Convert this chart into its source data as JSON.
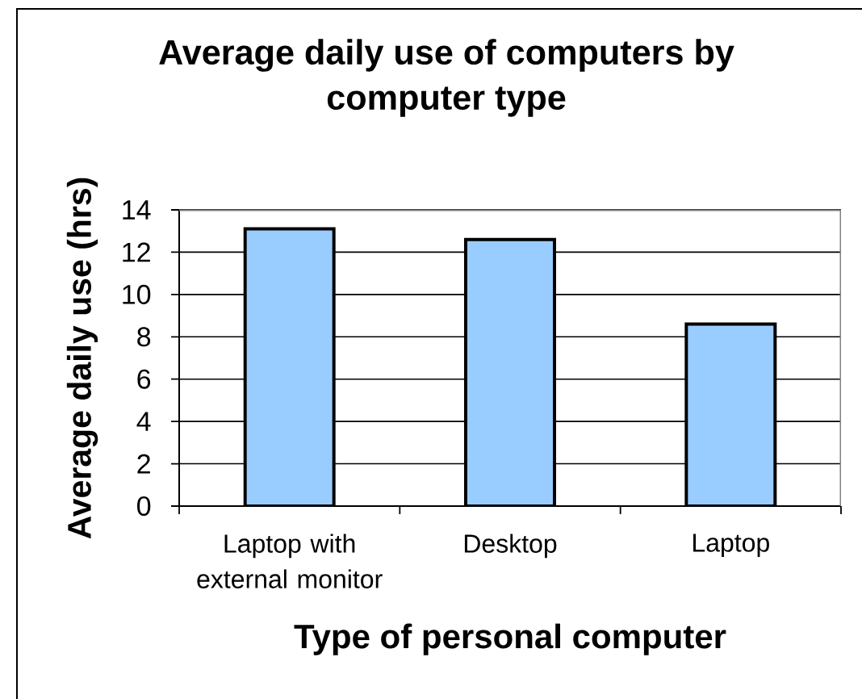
{
  "chart_data": {
    "type": "bar",
    "title": "Average daily use of computers by computer type",
    "xlabel": "Type of personal computer",
    "ylabel": "Average daily use (hrs)",
    "categories": [
      "Laptop with external monitor",
      "Desktop",
      "Laptop"
    ],
    "values": [
      13.1,
      12.6,
      8.6
    ],
    "color": "#99ccff",
    "ylim": [
      0,
      14
    ],
    "yticks": [
      0,
      2,
      4,
      6,
      8,
      10,
      12,
      14
    ],
    "grid": "y"
  }
}
